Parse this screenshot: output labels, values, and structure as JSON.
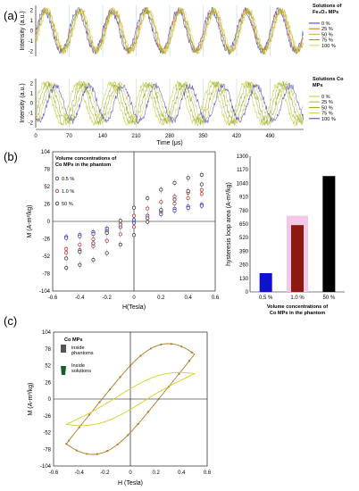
{
  "panel_labels": {
    "a": "(a)",
    "b": "(b)",
    "c": "(c)"
  },
  "chart_data": [
    {
      "id": "a-top",
      "type": "line",
      "legend_title": "Solutions of Fe₃O₄ MPs",
      "ylabel": "Intensity (a.u.)",
      "y_ticks": [
        2,
        1,
        0,
        -1,
        -2
      ],
      "ylim": [
        -2.5,
        2.5
      ],
      "xlim": [
        0,
        560
      ],
      "period": 70,
      "series": [
        {
          "name": "0 %",
          "color": "#1f3fbf",
          "amp": 2.0,
          "phase": 0
        },
        {
          "name": "25 %",
          "color": "#e06040",
          "amp": 2.0,
          "phase": 2
        },
        {
          "name": "50 %",
          "color": "#b8b830",
          "amp": 2.0,
          "phase": 4
        },
        {
          "name": "75 %",
          "color": "#7a9a20",
          "amp": 2.0,
          "phase": 6
        },
        {
          "name": "100 %",
          "color": "#e8d04a",
          "amp": 2.0,
          "phase": 8
        }
      ]
    },
    {
      "id": "a-bottom",
      "type": "line",
      "legend_title": "Solutions Co MPs",
      "ylabel": "Intensity (a.u.)",
      "y_ticks": [
        2,
        1,
        0,
        -1,
        -2
      ],
      "ylim": [
        -2.5,
        2.5
      ],
      "xlim": [
        0,
        560
      ],
      "xlabel": "Time (μs)",
      "x_ticks": [
        0,
        70,
        140,
        210,
        280,
        350,
        420,
        490
      ],
      "period": 70,
      "series": [
        {
          "name": "0 %",
          "color": "#c8c830",
          "amp": 2.0,
          "phase": 0
        },
        {
          "name": "25 %",
          "color": "#a0b830",
          "amp": 2.0,
          "phase": 6
        },
        {
          "name": "50 %",
          "color": "#88a020",
          "amp": 1.9,
          "phase": 12
        },
        {
          "name": "75 %",
          "color": "#d4c83a",
          "amp": 1.9,
          "phase": 18
        },
        {
          "name": "100 %",
          "color": "#4040c0",
          "amp": 1.8,
          "phase": 24
        }
      ]
    },
    {
      "id": "b-left",
      "type": "scatter",
      "legend_title": "Volume concentrations of Co MPs in the phantom",
      "xlabel": "H(Tesla)",
      "ylabel": "M (A-m²/kg)",
      "x_ticks": [
        "-0.6",
        "-0.4",
        "-0.2",
        "0",
        "0.2",
        "0.4",
        "0.6"
      ],
      "y_ticks": [
        "104",
        "78",
        "52",
        "26",
        "0",
        "-26",
        "-52",
        "-78",
        "-104"
      ],
      "xlim": [
        -0.6,
        0.6
      ],
      "ylim": [
        -104,
        104
      ],
      "series": [
        {
          "name": "0.5 %",
          "color": "#3030c0",
          "amp": 30,
          "open": 4
        },
        {
          "name": "1.0 %",
          "color": "#c03030",
          "amp": 55,
          "open": 14
        },
        {
          "name": "50 %",
          "color": "#303030",
          "amp": 78,
          "open": 34
        }
      ]
    },
    {
      "id": "b-right",
      "type": "bar",
      "ylabel": "hysteresis loop area (A-m²/kg)",
      "xlabel": "Volume concentrations of Co MPs in the phantom",
      "y_ticks": [
        "1300",
        "1170",
        "1040",
        "910",
        "780",
        "650",
        "520",
        "390",
        "260",
        "130",
        "0"
      ],
      "ylim": [
        0,
        1300
      ],
      "categories": [
        "0.5 %",
        "1.0 %",
        "50 %"
      ],
      "values": [
        180,
        640,
        1110
      ],
      "colors": [
        "#1010d0",
        "#8b1a10",
        "#000000"
      ]
    },
    {
      "id": "c",
      "type": "line",
      "legend_title": "Co MPs",
      "legend_items": [
        "inside phantoms",
        "Inside solutions"
      ],
      "xlabel": "H (Tesla)",
      "ylabel": "M (A-m²/kg)",
      "x_ticks": [
        "-0.6",
        "-0.4",
        "-0.2",
        "0",
        "0.2",
        "0.4",
        "0.6"
      ],
      "y_ticks": [
        "104",
        "78",
        "52",
        "26",
        "0",
        "-26",
        "-52",
        "-78",
        "-104"
      ],
      "xlim": [
        -0.6,
        0.6
      ],
      "ylim": [
        -104,
        104
      ],
      "series": [
        {
          "name": "inside phantoms",
          "color": "#b07a20",
          "amp": 85,
          "open": 52
        },
        {
          "name": "Inside solutions",
          "color": "#d8d020",
          "amp": 48,
          "open": 16
        }
      ]
    }
  ]
}
